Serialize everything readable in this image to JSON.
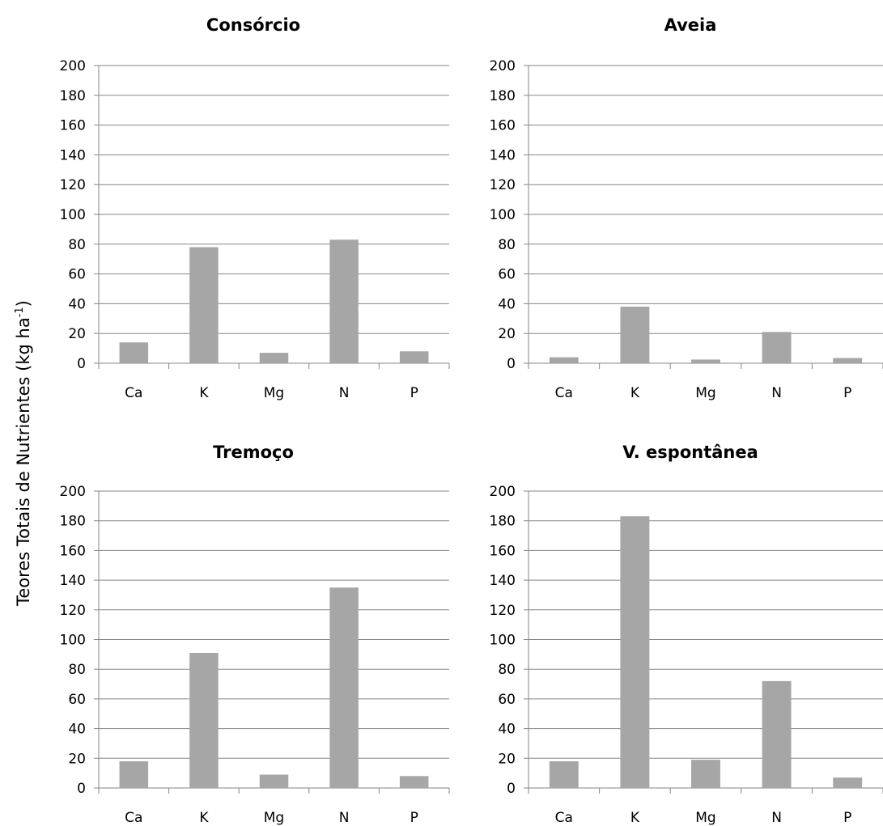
{
  "figure": {
    "ylabel_main": "Teores Totais de Nutrientes (kg ha",
    "ylabel_sup": "-1",
    "ylabel_end": ")"
  },
  "colors": {
    "bar": "#a6a6a6",
    "grid": "#868686",
    "axis": "#868686"
  },
  "chart_data": [
    {
      "type": "bar",
      "title": "Consórcio",
      "categories": [
        "Ca",
        "K",
        "Mg",
        "N",
        "P"
      ],
      "values": [
        14,
        78,
        7,
        83,
        8
      ],
      "ylim": [
        0,
        200
      ],
      "yticks": [
        0,
        20,
        40,
        60,
        80,
        100,
        120,
        140,
        160,
        180,
        200
      ],
      "grid": true
    },
    {
      "type": "bar",
      "title": "Aveia",
      "categories": [
        "Ca",
        "K",
        "Mg",
        "N",
        "P"
      ],
      "values": [
        4,
        38,
        2.5,
        21,
        3.5
      ],
      "ylim": [
        0,
        200
      ],
      "yticks": [
        0,
        20,
        40,
        60,
        80,
        100,
        120,
        140,
        160,
        180,
        200
      ],
      "grid": true
    },
    {
      "type": "bar",
      "title": "Tremoço",
      "categories": [
        "Ca",
        "K",
        "Mg",
        "N",
        "P"
      ],
      "values": [
        18,
        91,
        9,
        135,
        8
      ],
      "ylim": [
        0,
        200
      ],
      "yticks": [
        0,
        20,
        40,
        60,
        80,
        100,
        120,
        140,
        160,
        180,
        200
      ],
      "grid": true
    },
    {
      "type": "bar",
      "title": "V. espontânea",
      "categories": [
        "Ca",
        "K",
        "Mg",
        "N",
        "P"
      ],
      "values": [
        18,
        183,
        19,
        72,
        7
      ],
      "ylim": [
        0,
        200
      ],
      "yticks": [
        0,
        20,
        40,
        60,
        80,
        100,
        120,
        140,
        160,
        180,
        200
      ],
      "grid": true
    }
  ]
}
